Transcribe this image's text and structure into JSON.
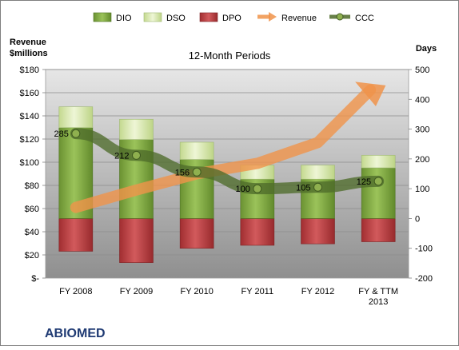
{
  "chart_data": {
    "type": "bar",
    "title": "12-Month Periods",
    "company": "ABIOMED",
    "left_axis_title": [
      "Revenue",
      "$millions"
    ],
    "right_axis_title": "Days",
    "left_ticks": [
      "$-",
      "$20",
      "$40",
      "$60",
      "$80",
      "$100",
      "$120",
      "$140",
      "$160",
      "$180"
    ],
    "left_ylim": [
      0,
      180
    ],
    "right_ticks": [
      "-200",
      "-100",
      "0",
      "100",
      "200",
      "300",
      "400",
      "500"
    ],
    "right_ylim": [
      -200,
      500
    ],
    "categories": [
      [
        "FY 2008"
      ],
      [
        "FY 2009"
      ],
      [
        "FY 2010"
      ],
      [
        "FY 2011"
      ],
      [
        "FY 2012"
      ],
      [
        "FY & TTM",
        "2013"
      ]
    ],
    "legend_position": "top",
    "legend": [
      "DIO",
      "DSO",
      "DPO",
      "Revenue",
      "CCC"
    ],
    "series": [
      {
        "name": "DIO",
        "axis": "days",
        "values": [
          305,
          265,
          198,
          132,
          132,
          170
        ],
        "color": "#7aa23a"
      },
      {
        "name": "DSO",
        "axis": "days",
        "values": [
          70,
          68,
          58,
          47,
          47,
          42
        ],
        "color": "#d3e6a7"
      },
      {
        "name": "DPO",
        "axis": "days",
        "values": [
          -110,
          -148,
          -100,
          -90,
          -85,
          -78
        ],
        "color": "#b8393c"
      },
      {
        "name": "Revenue",
        "axis": "revenue",
        "values": [
          61,
          76,
          90,
          99,
          117,
          161
        ],
        "color": "#f0934a"
      },
      {
        "name": "CCC",
        "axis": "days",
        "values": [
          285,
          212,
          156,
          100,
          105,
          125
        ],
        "labels": [
          "285",
          "212",
          "156",
          "100",
          "105",
          "125"
        ],
        "color": "#4e6b2a"
      }
    ],
    "grid": true
  }
}
